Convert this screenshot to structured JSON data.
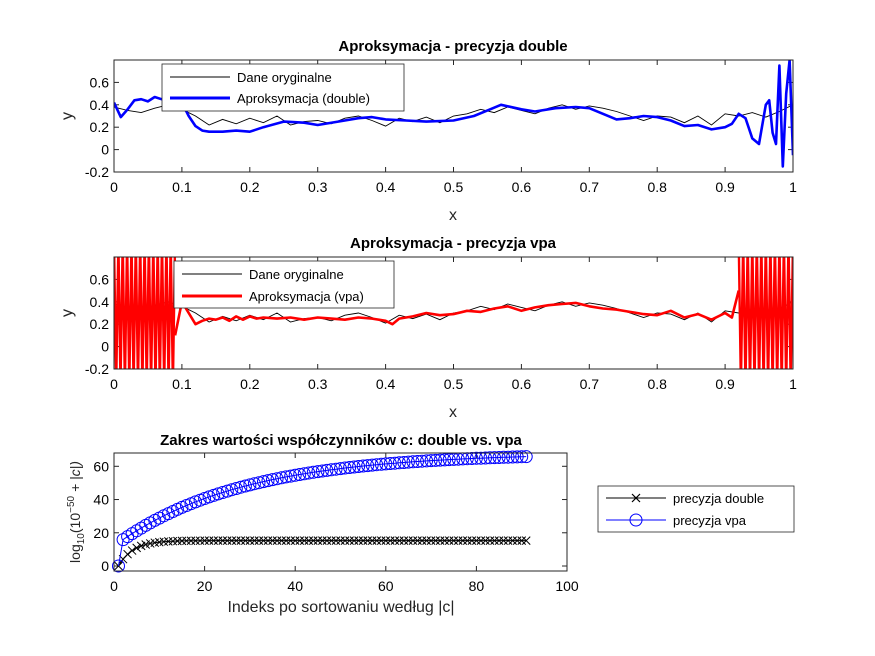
{
  "figure": {
    "background": "#ffffff"
  },
  "chart_data": [
    {
      "type": "line",
      "title": "Aproksymacja - precyzja double",
      "xlabel": "x",
      "ylabel": "y",
      "xlim": [
        0,
        1
      ],
      "ylim": [
        -0.2,
        0.8
      ],
      "xticks": [
        0,
        0.1,
        0.2,
        0.3,
        0.4,
        0.5,
        0.6,
        0.7,
        0.8,
        0.9,
        1
      ],
      "xtick_labels": [
        "0",
        "0.1",
        "0.2",
        "0.3",
        "0.4",
        "0.5",
        "0.6",
        "0.7",
        "0.8",
        "0.9",
        "1"
      ],
      "yticks": [
        -0.2,
        0,
        0.2,
        0.4,
        0.6
      ],
      "ytick_labels": [
        "-0.2",
        "0",
        "0.2",
        "0.4",
        "0.6"
      ],
      "grid": false,
      "legend": "top-left",
      "series": [
        {
          "name": "Dane oryginalne",
          "color": "#000000",
          "x": [
            0,
            0.02,
            0.04,
            0.06,
            0.08,
            0.1,
            0.12,
            0.14,
            0.16,
            0.18,
            0.2,
            0.22,
            0.24,
            0.26,
            0.28,
            0.3,
            0.32,
            0.34,
            0.36,
            0.38,
            0.4,
            0.42,
            0.44,
            0.46,
            0.48,
            0.5,
            0.52,
            0.54,
            0.56,
            0.58,
            0.6,
            0.62,
            0.64,
            0.66,
            0.68,
            0.7,
            0.72,
            0.74,
            0.76,
            0.78,
            0.8,
            0.82,
            0.84,
            0.86,
            0.88,
            0.9,
            0.92,
            0.94,
            0.96,
            0.98,
            1.0
          ],
          "y": [
            0.38,
            0.35,
            0.33,
            0.37,
            0.4,
            0.36,
            0.3,
            0.22,
            0.27,
            0.23,
            0.28,
            0.24,
            0.3,
            0.22,
            0.25,
            0.26,
            0.23,
            0.28,
            0.3,
            0.26,
            0.21,
            0.28,
            0.25,
            0.29,
            0.24,
            0.3,
            0.32,
            0.36,
            0.33,
            0.38,
            0.35,
            0.32,
            0.37,
            0.4,
            0.36,
            0.39,
            0.37,
            0.34,
            0.3,
            0.26,
            0.3,
            0.29,
            0.24,
            0.3,
            0.22,
            0.32,
            0.3,
            0.33,
            0.29,
            0.34,
            0.4
          ]
        },
        {
          "name": "Aproksymacja (double)",
          "color": "#0000ff",
          "x": [
            0,
            0.01,
            0.02,
            0.03,
            0.04,
            0.05,
            0.06,
            0.07,
            0.08,
            0.09,
            0.1,
            0.11,
            0.12,
            0.13,
            0.14,
            0.16,
            0.18,
            0.2,
            0.22,
            0.25,
            0.28,
            0.3,
            0.33,
            0.36,
            0.38,
            0.4,
            0.43,
            0.46,
            0.5,
            0.53,
            0.55,
            0.57,
            0.6,
            0.62,
            0.65,
            0.68,
            0.7,
            0.72,
            0.74,
            0.76,
            0.78,
            0.8,
            0.82,
            0.84,
            0.86,
            0.88,
            0.9,
            0.91,
            0.92,
            0.93,
            0.94,
            0.95,
            0.96,
            0.965,
            0.97,
            0.975,
            0.98,
            0.985,
            0.99,
            0.995,
            1.0
          ],
          "y": [
            0.42,
            0.29,
            0.36,
            0.44,
            0.45,
            0.43,
            0.47,
            0.45,
            0.47,
            0.46,
            0.42,
            0.3,
            0.21,
            0.17,
            0.16,
            0.16,
            0.17,
            0.16,
            0.2,
            0.25,
            0.24,
            0.22,
            0.25,
            0.28,
            0.29,
            0.27,
            0.26,
            0.25,
            0.26,
            0.3,
            0.35,
            0.4,
            0.36,
            0.34,
            0.37,
            0.38,
            0.37,
            0.32,
            0.27,
            0.28,
            0.3,
            0.29,
            0.26,
            0.21,
            0.22,
            0.18,
            0.2,
            0.23,
            0.32,
            0.28,
            0.1,
            0.05,
            0.4,
            0.44,
            0.15,
            0.05,
            0.75,
            -0.15,
            0.5,
            0.8,
            -0.05
          ]
        }
      ]
    },
    {
      "type": "line",
      "title": "Aproksymacja - precyzja vpa",
      "xlabel": "x",
      "ylabel": "y",
      "xlim": [
        0,
        1
      ],
      "ylim": [
        -0.2,
        0.8
      ],
      "xticks": [
        0,
        0.1,
        0.2,
        0.3,
        0.4,
        0.5,
        0.6,
        0.7,
        0.8,
        0.9,
        1
      ],
      "xtick_labels": [
        "0",
        "0.1",
        "0.2",
        "0.3",
        "0.4",
        "0.5",
        "0.6",
        "0.7",
        "0.8",
        "0.9",
        "1"
      ],
      "yticks": [
        -0.2,
        0,
        0.2,
        0.4,
        0.6
      ],
      "ytick_labels": [
        "-0.2",
        "0",
        "0.2",
        "0.4",
        "0.6"
      ],
      "grid": false,
      "legend": "top-left",
      "oscillation": {
        "left_range": [
          0,
          0.09
        ],
        "right_range": [
          0.92,
          1.0
        ],
        "cycles_left": 14,
        "cycles_right": 12
      },
      "series": [
        {
          "name": "Dane oryginalne",
          "color": "#000000",
          "x": [
            0,
            0.02,
            0.04,
            0.06,
            0.08,
            0.1,
            0.12,
            0.14,
            0.16,
            0.18,
            0.2,
            0.22,
            0.24,
            0.26,
            0.28,
            0.3,
            0.32,
            0.34,
            0.36,
            0.38,
            0.4,
            0.42,
            0.44,
            0.46,
            0.48,
            0.5,
            0.52,
            0.54,
            0.56,
            0.58,
            0.6,
            0.62,
            0.64,
            0.66,
            0.68,
            0.7,
            0.72,
            0.74,
            0.76,
            0.78,
            0.8,
            0.82,
            0.84,
            0.86,
            0.88,
            0.9,
            0.92,
            0.94,
            0.96,
            0.98,
            1.0
          ],
          "y": [
            0.38,
            0.35,
            0.33,
            0.37,
            0.4,
            0.36,
            0.3,
            0.22,
            0.27,
            0.23,
            0.28,
            0.24,
            0.3,
            0.22,
            0.25,
            0.26,
            0.23,
            0.28,
            0.3,
            0.26,
            0.21,
            0.28,
            0.25,
            0.29,
            0.24,
            0.3,
            0.32,
            0.36,
            0.33,
            0.38,
            0.35,
            0.32,
            0.37,
            0.4,
            0.36,
            0.39,
            0.37,
            0.34,
            0.3,
            0.26,
            0.3,
            0.29,
            0.24,
            0.3,
            0.22,
            0.32,
            0.3,
            0.33,
            0.29,
            0.34,
            0.4
          ]
        },
        {
          "name": "Aproksymacja (vpa)",
          "color": "#ff0000",
          "x": [
            0.09,
            0.1,
            0.11,
            0.12,
            0.13,
            0.14,
            0.15,
            0.16,
            0.17,
            0.18,
            0.19,
            0.2,
            0.21,
            0.22,
            0.24,
            0.26,
            0.28,
            0.3,
            0.32,
            0.34,
            0.36,
            0.38,
            0.4,
            0.41,
            0.42,
            0.44,
            0.46,
            0.48,
            0.5,
            0.52,
            0.54,
            0.56,
            0.58,
            0.6,
            0.62,
            0.64,
            0.66,
            0.68,
            0.7,
            0.72,
            0.74,
            0.76,
            0.78,
            0.8,
            0.82,
            0.84,
            0.86,
            0.88,
            0.9,
            0.91,
            0.92
          ],
          "y": [
            0.1,
            0.4,
            0.3,
            0.2,
            0.23,
            0.25,
            0.24,
            0.26,
            0.23,
            0.27,
            0.24,
            0.27,
            0.25,
            0.26,
            0.25,
            0.26,
            0.24,
            0.26,
            0.25,
            0.24,
            0.26,
            0.25,
            0.23,
            0.2,
            0.25,
            0.27,
            0.3,
            0.28,
            0.29,
            0.32,
            0.31,
            0.34,
            0.36,
            0.32,
            0.35,
            0.37,
            0.38,
            0.39,
            0.36,
            0.34,
            0.33,
            0.31,
            0.29,
            0.28,
            0.32,
            0.26,
            0.29,
            0.24,
            0.3,
            0.26,
            0.5
          ]
        }
      ]
    },
    {
      "type": "line",
      "title": "Zakres wartości współczynników c: double vs. vpa",
      "xlabel": "Indeks po sortowaniu według |c|",
      "ylabel": "log10(10^-50 + |c|)",
      "ylabel_parts": {
        "log": "log",
        "sub": "10",
        "open": "(",
        "base": "10",
        "exp": "−50",
        "rest": " + |c|)"
      },
      "xlim": [
        0,
        100
      ],
      "ylim": [
        -3,
        68
      ],
      "xticks": [
        0,
        20,
        40,
        60,
        80,
        100
      ],
      "xtick_labels": [
        "0",
        "20",
        "40",
        "60",
        "80",
        "100"
      ],
      "yticks": [
        0,
        20,
        40,
        60
      ],
      "ytick_labels": [
        "0",
        "20",
        "40",
        "60"
      ],
      "grid": false,
      "legend": "outside-right",
      "n_points": 91,
      "series": [
        {
          "name": "precyzja double",
          "color": "#000000",
          "marker": "x",
          "shape": "double"
        },
        {
          "name": "precyzja vpa",
          "color": "#0000ff",
          "marker": "o",
          "shape": "vpa"
        }
      ]
    }
  ]
}
